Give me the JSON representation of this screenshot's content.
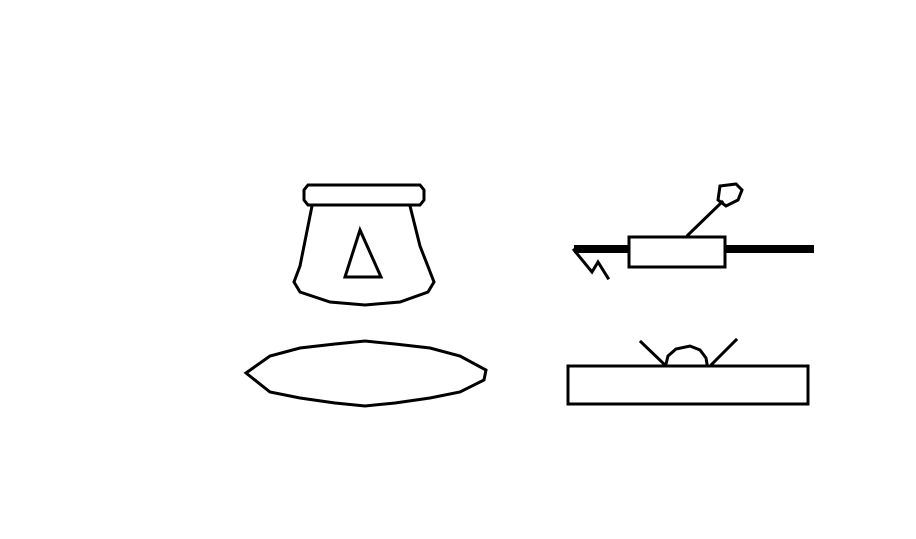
{
  "colors": {
    "background": "#ffffff",
    "ink": "#000000"
  },
  "icons": [
    "bucket-with-triangle-icon",
    "oval-plate-icon",
    "roller-tool-icon",
    "flat-slab-icon"
  ]
}
